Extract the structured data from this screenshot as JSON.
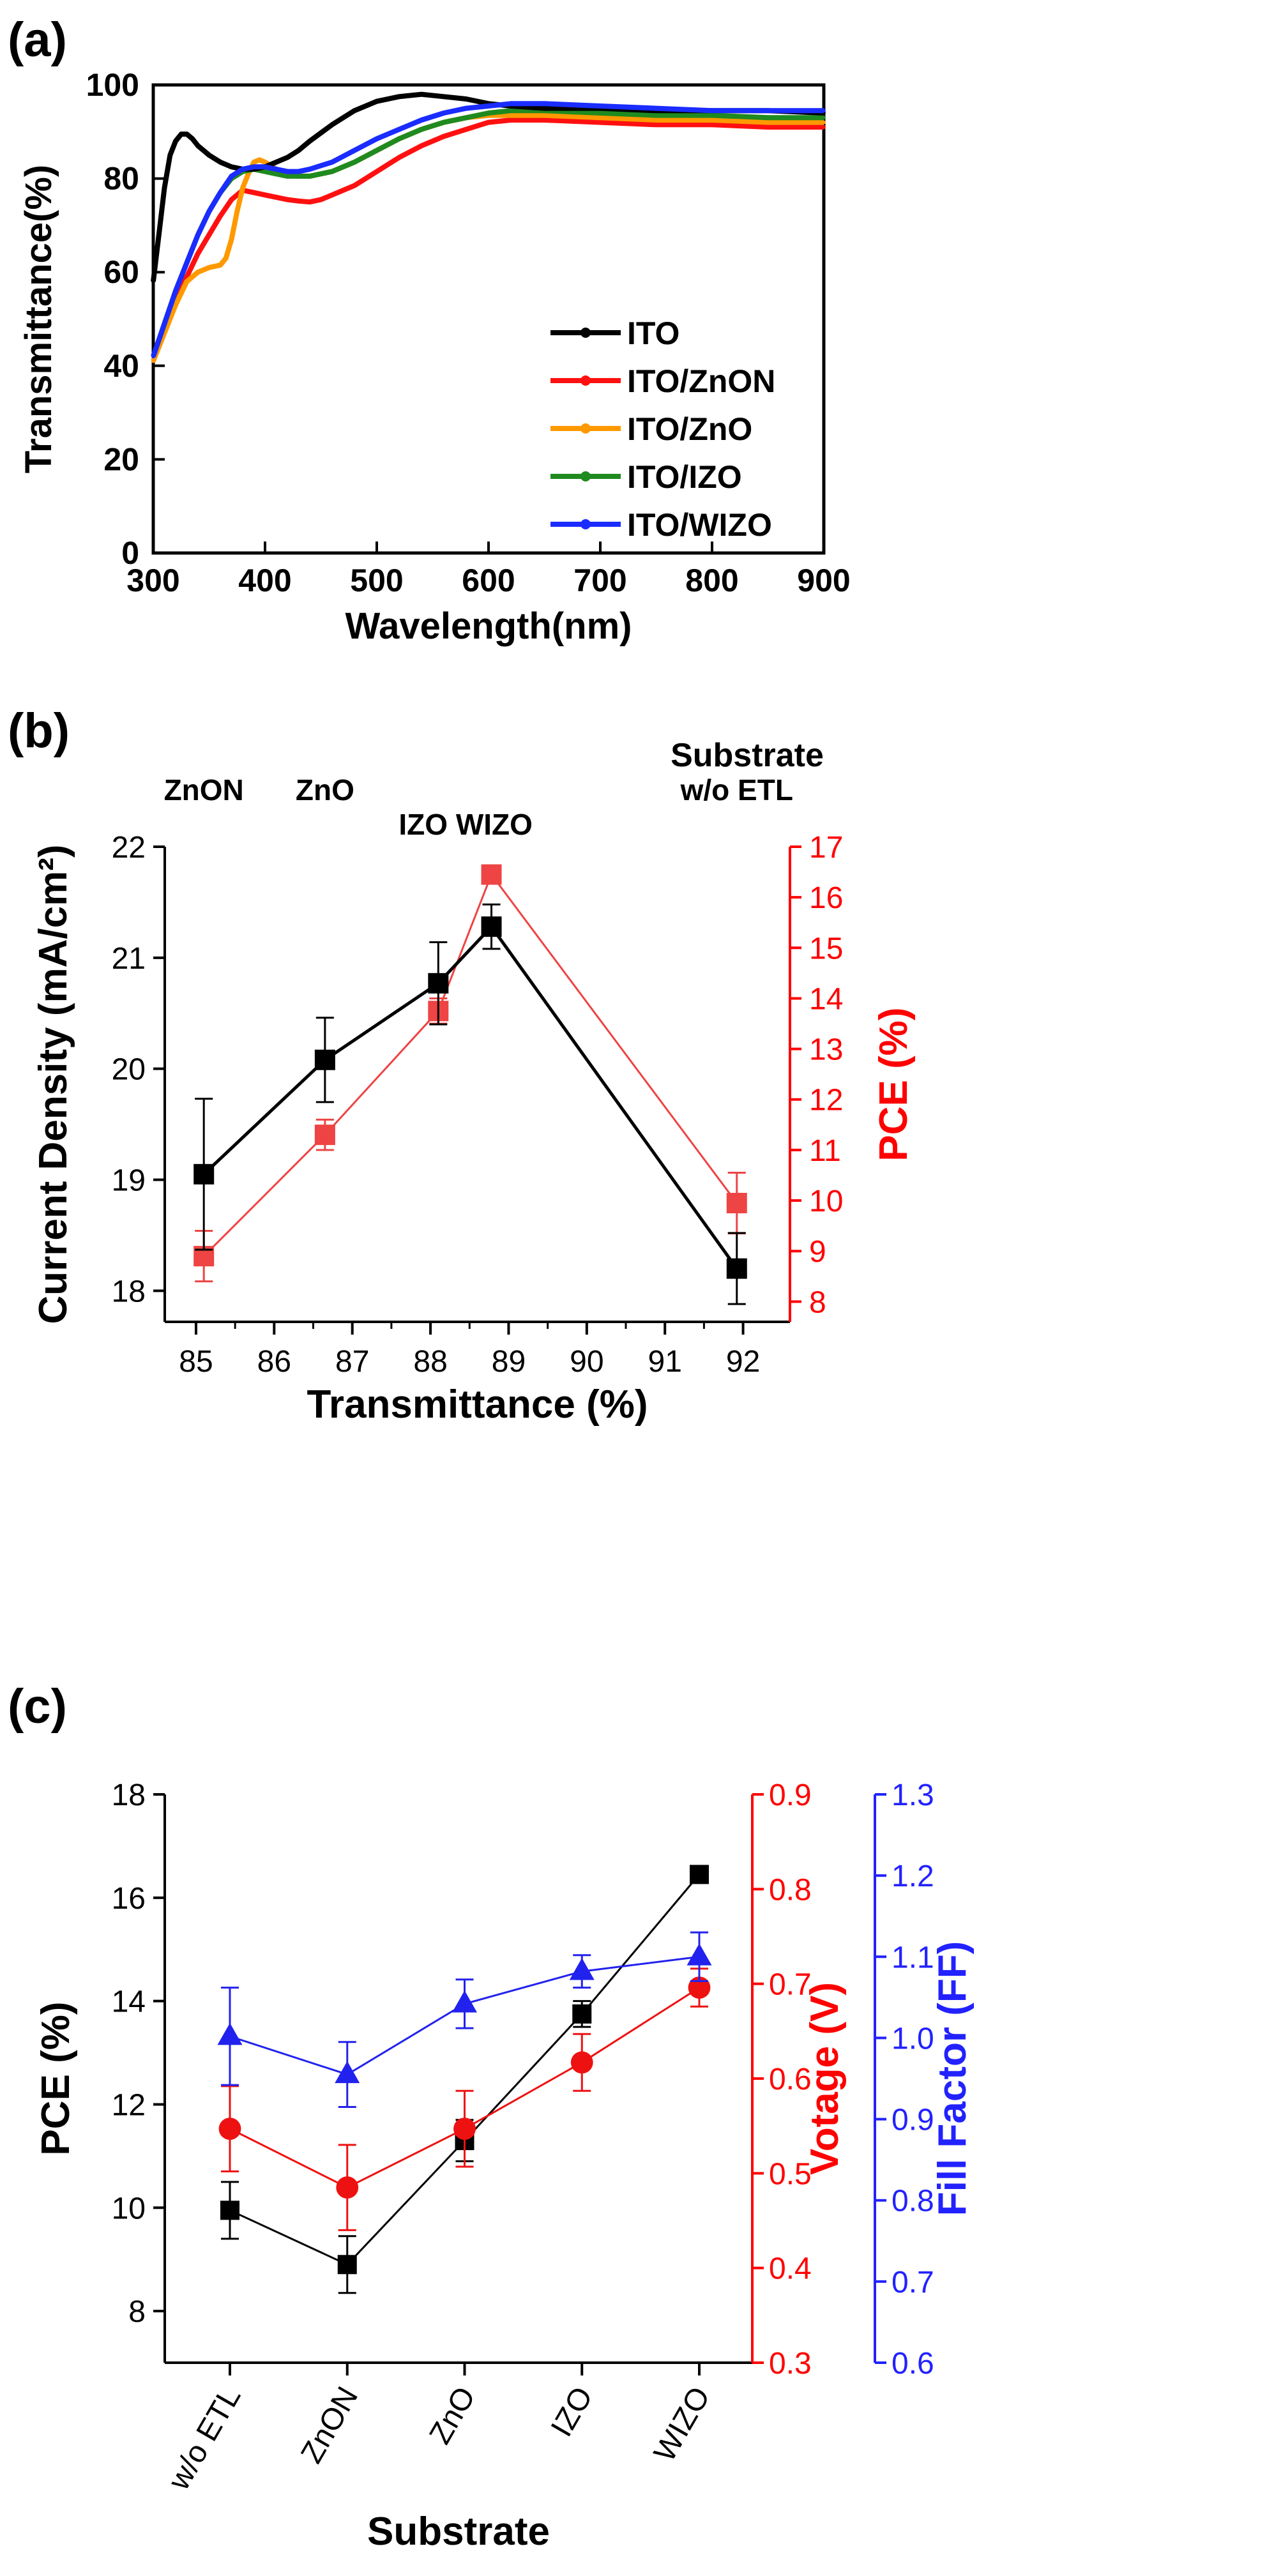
{
  "chart_data": [
    {
      "panel": "(a)",
      "type": "line",
      "title": "",
      "xlabel": "Wavelength(nm)",
      "ylabel": "Transmittance(%)",
      "xlim": [
        300,
        900
      ],
      "ylim": [
        0,
        100
      ],
      "xticks": [
        300,
        400,
        500,
        600,
        700,
        800,
        900
      ],
      "yticks": [
        0,
        20,
        40,
        60,
        80,
        100
      ],
      "legend_position": "lower-right",
      "grid": false,
      "series": [
        {
          "name": "ITO",
          "color": "#000000",
          "x": [
            300,
            305,
            310,
            315,
            320,
            325,
            330,
            335,
            340,
            350,
            360,
            370,
            380,
            390,
            400,
            410,
            420,
            430,
            440,
            460,
            480,
            500,
            520,
            540,
            560,
            580,
            600,
            620,
            650,
            700,
            750,
            800,
            850,
            900
          ],
          "y": [
            58,
            68,
            78,
            85,
            88,
            89.5,
            89.5,
            88.5,
            87,
            85,
            83.5,
            82.5,
            82,
            82,
            82.5,
            83.5,
            84.5,
            86,
            88,
            91.5,
            94.5,
            96.5,
            97.5,
            98,
            97.5,
            97,
            96,
            95.5,
            95,
            95,
            94.5,
            94.5,
            94.5,
            94
          ]
        },
        {
          "name": "ITO/ZnON",
          "color": "#ff1010",
          "x": [
            300,
            310,
            320,
            330,
            340,
            350,
            360,
            370,
            380,
            390,
            400,
            410,
            420,
            430,
            440,
            450,
            460,
            480,
            500,
            520,
            540,
            560,
            580,
            600,
            620,
            650,
            700,
            750,
            800,
            850,
            900
          ],
          "y": [
            42,
            48,
            54,
            59,
            64,
            68,
            72,
            75.5,
            77.5,
            77,
            76.5,
            76,
            75.5,
            75.2,
            75,
            75.5,
            76.5,
            78.5,
            81.5,
            84.5,
            87,
            89,
            90.5,
            92,
            92.5,
            92.5,
            92,
            91.5,
            91.5,
            91,
            91
          ]
        },
        {
          "name": "ITO/ZnO",
          "color": "#ff9900",
          "x": [
            300,
            310,
            320,
            330,
            340,
            350,
            360,
            365,
            370,
            375,
            380,
            385,
            390,
            395,
            400,
            410,
            420,
            430,
            440,
            460,
            480,
            500,
            520,
            540,
            560,
            580,
            600,
            620,
            650,
            700,
            750,
            800,
            850,
            900
          ],
          "y": [
            41,
            47,
            53,
            58,
            60,
            61,
            61.5,
            63,
            67,
            73,
            78,
            81,
            83.5,
            84,
            83.5,
            82,
            81,
            80.5,
            80.5,
            81.5,
            83.5,
            86,
            88.5,
            90.5,
            92,
            93,
            93.5,
            93.5,
            93.5,
            93,
            92.5,
            92.5,
            92,
            92
          ]
        },
        {
          "name": "ITO/IZO",
          "color": "#1f8a1f",
          "x": [
            300,
            310,
            320,
            330,
            340,
            350,
            360,
            370,
            380,
            390,
            400,
            410,
            420,
            430,
            440,
            460,
            480,
            500,
            520,
            540,
            560,
            580,
            600,
            620,
            650,
            700,
            750,
            800,
            850,
            900
          ],
          "y": [
            42,
            49,
            56,
            62,
            68,
            73,
            77,
            80,
            81.5,
            82,
            81.5,
            81,
            80.5,
            80.5,
            80.5,
            81.5,
            83.5,
            86,
            88.5,
            90.5,
            92,
            93,
            94,
            94.5,
            94.5,
            94,
            93.5,
            93.5,
            93,
            93
          ]
        },
        {
          "name": "ITO/WIZO",
          "color": "#1a2cff",
          "x": [
            300,
            310,
            320,
            330,
            340,
            350,
            360,
            370,
            380,
            390,
            400,
            410,
            420,
            430,
            440,
            460,
            480,
            500,
            520,
            540,
            560,
            580,
            600,
            620,
            650,
            700,
            750,
            800,
            850,
            900
          ],
          "y": [
            42,
            49,
            56,
            62,
            68,
            73,
            77,
            80.5,
            82,
            82.5,
            82.5,
            82,
            81.5,
            81.5,
            82,
            83.5,
            86,
            88.5,
            90.5,
            92.5,
            94,
            95,
            95.5,
            96,
            96,
            95.5,
            95,
            94.5,
            94.5,
            94.5
          ]
        }
      ]
    },
    {
      "panel": "(b)",
      "type": "line",
      "title": "",
      "xlabel": "Transmittance (%)",
      "ylabel": "Current Density (mA/cm²)",
      "y2label": "PCE (%)",
      "top_axis_title": "Substrate",
      "top_labels": [
        "ZnON",
        "ZnO",
        "IZO WIZO",
        "w/o ETL"
      ],
      "xlim": [
        84.6,
        92.6
      ],
      "ylim": [
        17.72,
        22
      ],
      "y2lim": [
        7.6,
        17
      ],
      "xticks": [
        85,
        86,
        87,
        88,
        89,
        90,
        91,
        92
      ],
      "yticks": [
        18,
        19,
        20,
        21,
        22
      ],
      "y2ticks": [
        8,
        9,
        10,
        11,
        12,
        13,
        14,
        15,
        16,
        17
      ],
      "series": [
        {
          "name": "Current Density",
          "axis": "left",
          "color": "#000000",
          "x": [
            85.1,
            86.65,
            88.1,
            88.78,
            91.92
          ],
          "y": [
            19.05,
            20.08,
            20.77,
            21.28,
            18.2
          ],
          "err": [
            0.68,
            0.38,
            0.37,
            0.2,
            0.32
          ]
        },
        {
          "name": "PCE",
          "axis": "right",
          "color": "#ee4444",
          "x": [
            85.1,
            86.65,
            88.1,
            88.78,
            91.92
          ],
          "y": [
            8.9,
            11.3,
            13.75,
            16.45,
            9.95
          ],
          "err": [
            0.5,
            0.3,
            0.25,
            0.15,
            0.6
          ]
        }
      ]
    },
    {
      "panel": "(c)",
      "type": "line",
      "title": "",
      "xlabel": "Substrate",
      "ylabel": "PCE (%)",
      "y2label": "Votage (V)",
      "y3label": "Fill Factor (FF)",
      "categories": [
        "w/o ETL",
        "ZnON",
        "ZnO",
        "IZO",
        "WIZO"
      ],
      "ylim": [
        7,
        18
      ],
      "y2lim": [
        0.3,
        0.9
      ],
      "y3lim": [
        0.6,
        1.3
      ],
      "yticks": [
        8,
        10,
        12,
        14,
        16,
        18
      ],
      "y2ticks": [
        0.3,
        0.4,
        0.5,
        0.6,
        0.7,
        0.8,
        0.9
      ],
      "y3ticks": [
        0.6,
        0.7,
        0.8,
        0.9,
        1.0,
        1.1,
        1.2,
        1.3
      ],
      "series": [
        {
          "name": "PCE",
          "axis": "left",
          "color": "#000000",
          "marker": "square",
          "values": [
            9.95,
            8.9,
            11.3,
            13.75,
            16.45
          ],
          "err": [
            0.55,
            0.55,
            0.4,
            0.25,
            0.1
          ]
        },
        {
          "name": "Votage",
          "axis": "right",
          "color": "#ee1111",
          "marker": "circle",
          "values": [
            0.547,
            0.485,
            0.547,
            0.617,
            0.696
          ],
          "err": [
            0.045,
            0.045,
            0.04,
            0.03,
            0.02
          ]
        },
        {
          "name": "Fill Factor",
          "axis": "right2",
          "color": "#2222ee",
          "marker": "triangle",
          "values": [
            1.002,
            0.955,
            1.042,
            1.082,
            1.1
          ],
          "err": [
            0.06,
            0.04,
            0.03,
            0.02,
            0.03
          ]
        }
      ]
    }
  ]
}
